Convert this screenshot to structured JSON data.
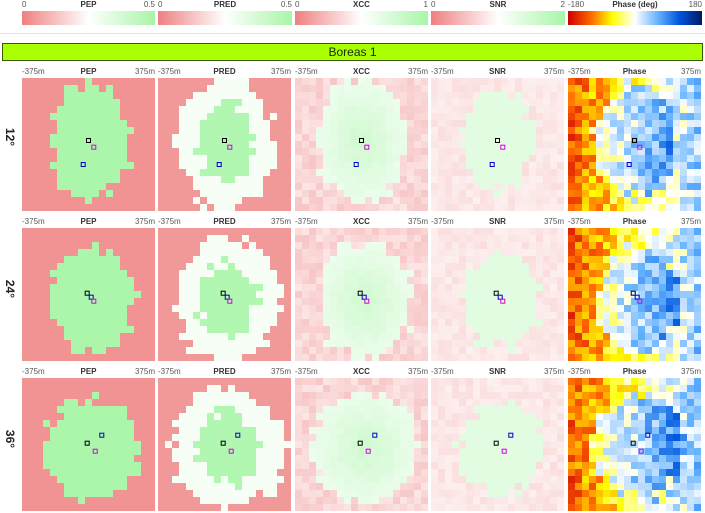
{
  "colorbars": [
    {
      "title": "PEP",
      "min": "0",
      "max": "0.5"
    },
    {
      "title": "PRED",
      "min": "0",
      "max": "0.5"
    },
    {
      "title": "XCC",
      "min": "0",
      "max": "1"
    },
    {
      "title": "SNR",
      "min": "0",
      "max": "2"
    },
    {
      "title": "Phase (deg)",
      "min": "-180",
      "max": "180"
    }
  ],
  "colors": {
    "low": "#ee8080",
    "mid": "#ffffff",
    "high": "#a8f5a8",
    "phase": [
      "#cc0000",
      "#ff6600",
      "#ffff00",
      "#ffffff",
      "#66b3ff",
      "#0055dd",
      "#001a66"
    ],
    "banner": "#aaff00",
    "marker_black": "#000000",
    "marker_blue": "#0000cc",
    "marker_magenta": "#dd00dd"
  },
  "title": "Boreas 1",
  "panel_titles": [
    "PEP",
    "PRED",
    "XCC",
    "SNR",
    "Phase"
  ],
  "axis_left": "-375m",
  "axis_right": "375m",
  "rows": [
    {
      "label": "12°"
    },
    {
      "label": "24°"
    },
    {
      "label": "36°"
    }
  ]
}
